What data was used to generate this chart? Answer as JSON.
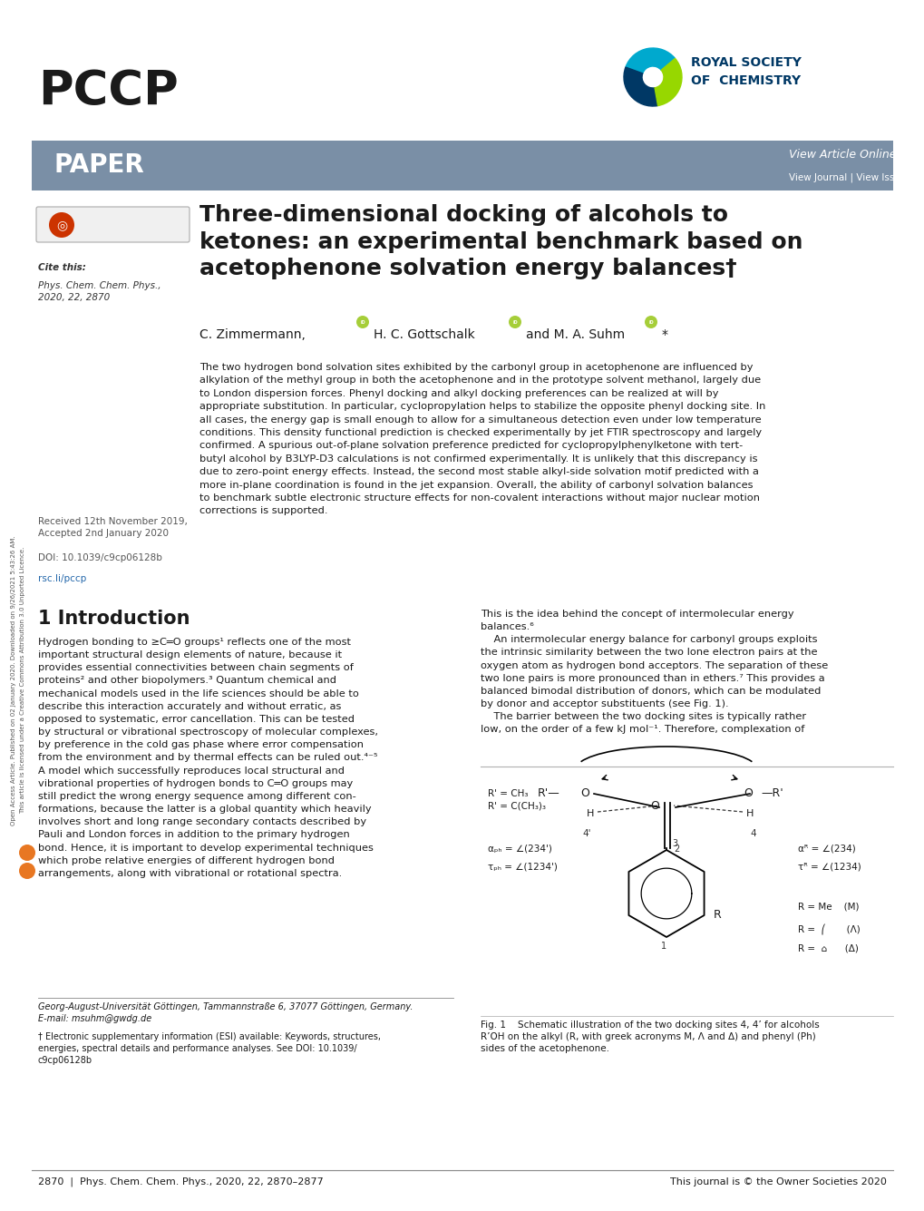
{
  "page_width": 10.2,
  "page_height": 13.35,
  "bg_color": "#ffffff",
  "header_bar_color": "#7a8fa6",
  "journal_name": "PCCP",
  "section_label": "PAPER",
  "view_article_online": "View Article Online",
  "view_links": "View Journal | View Issue",
  "article_title": "Three-dimensional docking of alcohols to\nketones: an experimental benchmark based on\nacetophenone solvation energy balances†",
  "cite_this_italic": "Phys. Chem. Chem. Phys.,\n2020, 22, 2870",
  "received_text": "Received 12th November 2019,\nAccepted 2nd January 2020",
  "doi_text": "DOI: 10.1039/c9cp06128b",
  "rsc_link": "rsc.li/pccp",
  "abstract_text": "The two hydrogen bond solvation sites exhibited by the carbonyl group in acetophenone are influenced by alkylation of the methyl group in both the acetophenone and in the prototype solvent methanol, largely due to London dispersion forces. Phenyl docking and alkyl docking preferences can be realized at will by appropriate substitution. In particular, cyclopropylation helps to stabilize the opposite phenyl docking site. In all cases, the energy gap is small enough to allow for a simultaneous detection even under low temperature conditions. This density functional prediction is checked experimentally by jet FTIR spectroscopy and largely confirmed. A spurious out-of-plane solvation preference predicted for cyclopropylphenylketone with tert-butyl alcohol by B3LYP-D3 calculations is not confirmed experimentally. It is unlikely that this discrepancy is due to zero-point energy effects. Instead, the second most stable alkyl-side solvation motif predicted with a more in-plane coordination is found in the jet expansion. Overall, the ability of carbonyl solvation balances to benchmark subtle electronic structure effects for non-covalent interactions without major nuclear motion corrections is supported.",
  "intro_heading": "1 Introduction",
  "footer_left": "2870  |  Phys. Chem. Chem. Phys., 2020, 22, 2870–2877",
  "footer_right": "This journal is © the Owner Societies 2020",
  "text_color": "#1a1a1a"
}
